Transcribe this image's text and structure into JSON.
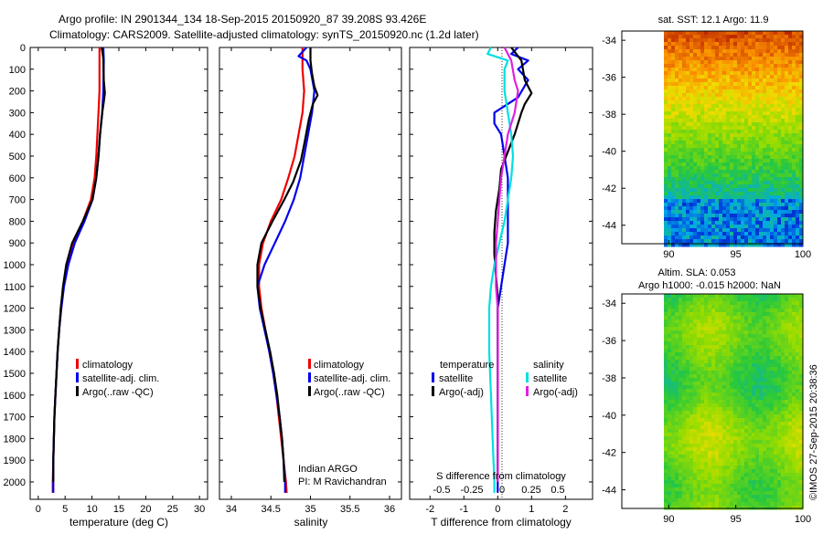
{
  "header": {
    "line1": "Argo profile: IN 2901344_134 18-Sep-2015 20150920_87 39.208S 93.426E",
    "line2": "Climatology: CARS2009. Satellite-adjusted climatology: synTS_20150920.nc (1.2d later)"
  },
  "colors": {
    "climatology": "#ee0000",
    "satellite": "#0000ee",
    "argo": "#000000",
    "satellite_salinity": "#00e0e0",
    "argo_salinity": "#e020e0"
  },
  "chart_data": [
    {
      "type": "line",
      "xlabel": "temperature (deg C)",
      "ylabel": "",
      "xlim": [
        -1.5,
        31.5
      ],
      "ylim": [
        2080,
        0
      ],
      "x_ticks": [
        "0",
        "5",
        "10",
        "15",
        "20",
        "25",
        "30"
      ],
      "y_ticks": [
        "0",
        "100",
        "200",
        "300",
        "400",
        "500",
        "600",
        "700",
        "800",
        "900",
        "1000",
        "1100",
        "1200",
        "1300",
        "1400",
        "1500",
        "1600",
        "1700",
        "1800",
        "1900",
        "2000"
      ],
      "legend": {
        "position": "lower-right",
        "entries": [
          "climatology",
          "satellite-adj. clim.",
          "Argo(..raw -QC)"
        ]
      },
      "series": [
        {
          "name": "climatology",
          "color": "#ee0000",
          "points": [
            [
              11.4,
              0
            ],
            [
              11.4,
              100
            ],
            [
              11.4,
              200
            ],
            [
              11.2,
              300
            ],
            [
              11.0,
              400
            ],
            [
              10.8,
              500
            ],
            [
              10.5,
              600
            ],
            [
              9.8,
              700
            ],
            [
              8.3,
              800
            ],
            [
              6.5,
              900
            ],
            [
              5.4,
              1000
            ],
            [
              4.7,
              1100
            ],
            [
              4.2,
              1200
            ],
            [
              3.9,
              1300
            ],
            [
              3.6,
              1400
            ],
            [
              3.4,
              1500
            ],
            [
              3.2,
              1600
            ],
            [
              3.0,
              1700
            ],
            [
              2.9,
              1800
            ],
            [
              2.8,
              1900
            ],
            [
              2.7,
              2000
            ],
            [
              2.7,
              2050
            ]
          ]
        },
        {
          "name": "satellite-adj. clim.",
          "color": "#0000ee",
          "points": [
            [
              12.1,
              0
            ],
            [
              12.2,
              60
            ],
            [
              12.1,
              200
            ],
            [
              11.9,
              300
            ],
            [
              11.5,
              400
            ],
            [
              11.2,
              500
            ],
            [
              10.8,
              600
            ],
            [
              10.1,
              700
            ],
            [
              8.6,
              800
            ],
            [
              6.8,
              900
            ],
            [
              5.6,
              1000
            ],
            [
              4.8,
              1100
            ],
            [
              4.3,
              1200
            ],
            [
              3.9,
              1300
            ],
            [
              3.6,
              1400
            ],
            [
              3.4,
              1500
            ],
            [
              3.2,
              1600
            ],
            [
              3.0,
              1700
            ],
            [
              2.9,
              1800
            ],
            [
              2.8,
              1900
            ],
            [
              2.8,
              2000
            ],
            [
              2.8,
              2050
            ]
          ]
        },
        {
          "name": "Argo(..raw -QC)",
          "color": "#000000",
          "points": [
            [
              11.8,
              0
            ],
            [
              12.1,
              50
            ],
            [
              12.2,
              150
            ],
            [
              12.4,
              210
            ],
            [
              12.2,
              250
            ],
            [
              11.9,
              300
            ],
            [
              11.5,
              400
            ],
            [
              11.2,
              500
            ],
            [
              10.8,
              600
            ],
            [
              10.1,
              700
            ],
            [
              8.3,
              800
            ],
            [
              6.3,
              900
            ],
            [
              5.2,
              1000
            ],
            [
              4.6,
              1100
            ],
            [
              4.2,
              1200
            ],
            [
              3.9,
              1300
            ],
            [
              3.6,
              1400
            ],
            [
              3.4,
              1500
            ],
            [
              3.2,
              1600
            ],
            [
              3.0,
              1700
            ],
            [
              2.9,
              1800
            ],
            [
              2.8,
              1900
            ],
            [
              2.8,
              2000
            ]
          ]
        }
      ]
    },
    {
      "type": "line",
      "xlabel": "salinity",
      "xlim": [
        33.85,
        36.15
      ],
      "ylim": [
        2080,
        0
      ],
      "x_ticks": [
        "34",
        "34.5",
        "35",
        "35.5",
        "36"
      ],
      "legend": {
        "position": "lower-right",
        "entries": [
          "climatology",
          "satellite-adj. clim.",
          "Argo(..raw -QC)"
        ]
      },
      "annotation": [
        "Indian ARGO",
        "PI: M Ravichandran"
      ],
      "series": [
        {
          "name": "climatology",
          "color": "#ee0000",
          "points": [
            [
              34.9,
              0
            ],
            [
              34.9,
              100
            ],
            [
              34.92,
              200
            ],
            [
              34.9,
              300
            ],
            [
              34.85,
              400
            ],
            [
              34.8,
              500
            ],
            [
              34.72,
              600
            ],
            [
              34.63,
              700
            ],
            [
              34.5,
              800
            ],
            [
              34.4,
              900
            ],
            [
              34.35,
              1000
            ],
            [
              34.35,
              1100
            ],
            [
              34.38,
              1200
            ],
            [
              34.43,
              1300
            ],
            [
              34.48,
              1400
            ],
            [
              34.53,
              1500
            ],
            [
              34.57,
              1600
            ],
            [
              34.6,
              1700
            ],
            [
              34.63,
              1800
            ],
            [
              34.66,
              1900
            ],
            [
              34.69,
              2000
            ],
            [
              34.7,
              2050
            ]
          ]
        },
        {
          "name": "satellite-adj. clim.",
          "color": "#0000ee",
          "points": [
            [
              34.95,
              0
            ],
            [
              34.85,
              40
            ],
            [
              34.95,
              60
            ],
            [
              35.0,
              100
            ],
            [
              35.05,
              200
            ],
            [
              35.02,
              300
            ],
            [
              34.97,
              400
            ],
            [
              34.92,
              500
            ],
            [
              34.87,
              600
            ],
            [
              34.79,
              700
            ],
            [
              34.68,
              800
            ],
            [
              34.55,
              900
            ],
            [
              34.42,
              1000
            ],
            [
              34.33,
              1100
            ],
            [
              34.36,
              1200
            ],
            [
              34.42,
              1300
            ],
            [
              34.48,
              1400
            ],
            [
              34.53,
              1500
            ],
            [
              34.57,
              1600
            ],
            [
              34.61,
              1700
            ],
            [
              34.64,
              1800
            ],
            [
              34.66,
              1900
            ],
            [
              34.68,
              2000
            ],
            [
              34.68,
              2050
            ]
          ]
        },
        {
          "name": "Argo(..raw -QC)",
          "color": "#000000",
          "points": [
            [
              35.0,
              0
            ],
            [
              35.0,
              60
            ],
            [
              35.02,
              120
            ],
            [
              35.05,
              180
            ],
            [
              35.09,
              220
            ],
            [
              35.03,
              260
            ],
            [
              34.98,
              330
            ],
            [
              34.93,
              430
            ],
            [
              34.88,
              520
            ],
            [
              34.78,
              620
            ],
            [
              34.67,
              700
            ],
            [
              34.52,
              800
            ],
            [
              34.38,
              900
            ],
            [
              34.33,
              1000
            ],
            [
              34.33,
              1100
            ],
            [
              34.37,
              1200
            ],
            [
              34.43,
              1300
            ],
            [
              34.49,
              1400
            ],
            [
              34.54,
              1500
            ],
            [
              34.58,
              1600
            ],
            [
              34.61,
              1700
            ],
            [
              34.64,
              1800
            ],
            [
              34.66,
              1900
            ],
            [
              34.67,
              2000
            ]
          ]
        }
      ]
    },
    {
      "type": "line",
      "xlabel": "T difference from climatology",
      "top_axis_label": "S difference from climatology",
      "xlim": [
        -2.6,
        2.8
      ],
      "ylim": [
        2080,
        0
      ],
      "x_ticks": [
        "-2",
        "-1",
        "0",
        "1",
        "2"
      ],
      "top_ticks": [
        "-0.5",
        "-0.25",
        "0",
        "0.25",
        "0.5"
      ],
      "legend": {
        "position": "lower-center",
        "groups": [
          "temperature",
          "salinity"
        ],
        "entries": [
          "satellite",
          "Argo(-adj)",
          "satellite",
          "Argo(-adj)"
        ]
      },
      "series": [
        {
          "name": "temperature satellite",
          "color": "#0000ee",
          "points": [
            [
              0.6,
              0
            ],
            [
              0.4,
              30
            ],
            [
              0.9,
              60
            ],
            [
              0.6,
              100
            ],
            [
              0.9,
              150
            ],
            [
              0.6,
              230
            ],
            [
              -0.1,
              300
            ],
            [
              -0.1,
              350
            ],
            [
              0.1,
              400
            ],
            [
              0.2,
              500
            ],
            [
              0.3,
              600
            ],
            [
              0.3,
              700
            ],
            [
              0.3,
              800
            ],
            [
              0.3,
              900
            ],
            [
              0.2,
              1000
            ],
            [
              0.1,
              1100
            ],
            [
              0.0,
              1200
            ],
            [
              0.0,
              1300
            ],
            [
              0.0,
              1500
            ],
            [
              0.0,
              1700
            ],
            [
              0.0,
              1900
            ],
            [
              0.0,
              2050
            ]
          ]
        },
        {
          "name": "temperature Argo(-adj)",
          "color": "#000000",
          "points": [
            [
              0.4,
              0
            ],
            [
              0.7,
              60
            ],
            [
              0.8,
              150
            ],
            [
              1.0,
              210
            ],
            [
              0.8,
              260
            ],
            [
              0.7,
              300
            ],
            [
              0.5,
              400
            ],
            [
              0.3,
              480
            ],
            [
              0.1,
              560
            ],
            [
              0.05,
              650
            ],
            [
              -0.05,
              750
            ],
            [
              -0.1,
              850
            ],
            [
              -0.1,
              950
            ],
            [
              -0.05,
              1050
            ],
            [
              0.0,
              1150
            ],
            [
              0.0,
              1250
            ],
            [
              0.0,
              1400
            ],
            [
              0.0,
              1600
            ],
            [
              0.0,
              1800
            ],
            [
              0.0,
              2000
            ]
          ]
        },
        {
          "name": "salinity satellite",
          "color": "#00e0e0",
          "points": [
            [
              -0.2,
              0
            ],
            [
              -0.3,
              30
            ],
            [
              0.3,
              60
            ],
            [
              0.2,
              100
            ],
            [
              0.2,
              200
            ],
            [
              0.3,
              300
            ],
            [
              0.4,
              400
            ],
            [
              0.45,
              500
            ],
            [
              0.4,
              600
            ],
            [
              0.3,
              700
            ],
            [
              0.2,
              800
            ],
            [
              0.05,
              900
            ],
            [
              -0.1,
              1000
            ],
            [
              -0.2,
              1100
            ],
            [
              -0.25,
              1200
            ],
            [
              -0.25,
              1400
            ],
            [
              -0.2,
              1600
            ],
            [
              -0.15,
              1800
            ],
            [
              -0.1,
              2000
            ],
            [
              -0.1,
              2050
            ]
          ]
        },
        {
          "name": "salinity Argo(-adj)",
          "color": "#e020e0",
          "points": [
            [
              0.2,
              0
            ],
            [
              0.4,
              60
            ],
            [
              0.5,
              150
            ],
            [
              0.6,
              200
            ],
            [
              0.5,
              300
            ],
            [
              0.3,
              400
            ],
            [
              0.2,
              500
            ],
            [
              0.1,
              600
            ],
            [
              0.05,
              700
            ],
            [
              0.0,
              800
            ],
            [
              -0.05,
              900
            ],
            [
              -0.05,
              1000
            ],
            [
              -0.05,
              1100
            ],
            [
              0.0,
              1200
            ],
            [
              0.0,
              1400
            ],
            [
              0.0,
              1600
            ],
            [
              0.0,
              1800
            ],
            [
              0.0,
              2000
            ]
          ]
        }
      ]
    },
    {
      "type": "heatmap",
      "title": "sat. SST: 12.1  Argo: 11.9",
      "xlim": [
        86.5,
        100
      ],
      "ylim": [
        -45,
        -33.5
      ],
      "x_ticks": [
        "90",
        "95",
        "100"
      ],
      "y_ticks": [
        "-34",
        "-36",
        "-38",
        "-40",
        "-42",
        "-44"
      ]
    },
    {
      "type": "heatmap",
      "title": "Altim. SLA: 0.053",
      "subtitle": "Argo h1000: -0.015 h2000: NaN",
      "xlim": [
        86.5,
        100
      ],
      "ylim": [
        -45,
        -33.5
      ],
      "x_ticks": [
        "90",
        "95",
        "100"
      ],
      "y_ticks": [
        "-34",
        "-36",
        "-38",
        "-40",
        "-42",
        "-44"
      ]
    }
  ],
  "footer_stamp": "©IMOS 27-Sep-2015 20:38:36"
}
